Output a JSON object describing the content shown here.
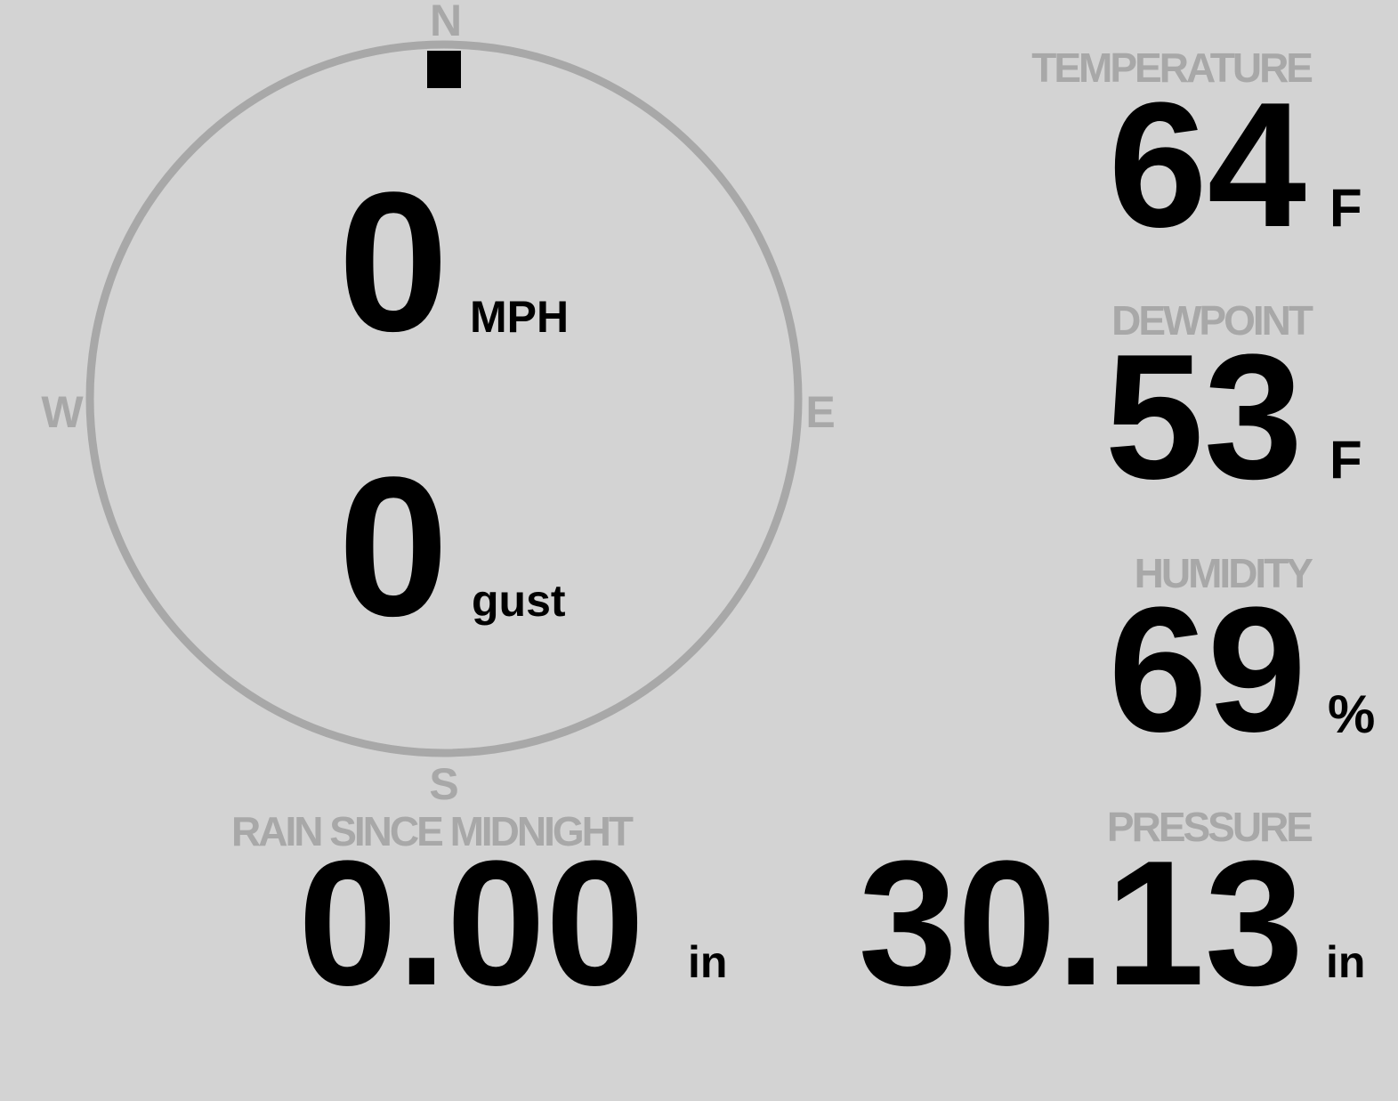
{
  "compass": {
    "north": "N",
    "south": "S",
    "east": "E",
    "west": "W",
    "wind_direction_deg": 0,
    "ring_color": "#a8a8a8"
  },
  "wind": {
    "speed": "0",
    "speed_unit": "MPH",
    "gust": "0",
    "gust_unit": "gust"
  },
  "temperature": {
    "label": "TEMPERATURE",
    "value": "64",
    "unit": "F"
  },
  "dewpoint": {
    "label": "DEWPOINT",
    "value": "53",
    "unit": "F"
  },
  "humidity": {
    "label": "HUMIDITY",
    "value": "69",
    "unit": "%"
  },
  "pressure": {
    "label": "PRESSURE",
    "value": "30.13",
    "unit": "in"
  },
  "rain": {
    "label": "RAIN SINCE MIDNIGHT",
    "value": "0.00",
    "unit": "in"
  },
  "colors": {
    "background": "#d3d3d3",
    "label": "#a8a8a8",
    "value": "#000000"
  }
}
